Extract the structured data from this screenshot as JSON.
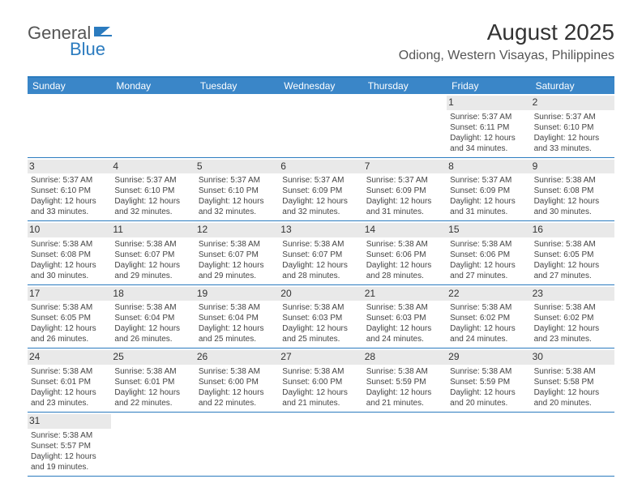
{
  "logo": {
    "word1": "General",
    "word2": "Blue"
  },
  "title": "August 2025",
  "location": "Odiong, Western Visayas, Philippines",
  "dayNames": [
    "Sunday",
    "Monday",
    "Tuesday",
    "Wednesday",
    "Thursday",
    "Friday",
    "Saturday"
  ],
  "colors": {
    "headerBar": "#3a86c8",
    "accent": "#2b7bbf",
    "numBg": "#e9e9e9",
    "text": "#444"
  },
  "weeks": [
    [
      null,
      null,
      null,
      null,
      null,
      {
        "n": "1",
        "sr": "5:37 AM",
        "ss": "6:11 PM",
        "dl": "12 hours and 34 minutes."
      },
      {
        "n": "2",
        "sr": "5:37 AM",
        "ss": "6:10 PM",
        "dl": "12 hours and 33 minutes."
      }
    ],
    [
      {
        "n": "3",
        "sr": "5:37 AM",
        "ss": "6:10 PM",
        "dl": "12 hours and 33 minutes."
      },
      {
        "n": "4",
        "sr": "5:37 AM",
        "ss": "6:10 PM",
        "dl": "12 hours and 32 minutes."
      },
      {
        "n": "5",
        "sr": "5:37 AM",
        "ss": "6:10 PM",
        "dl": "12 hours and 32 minutes."
      },
      {
        "n": "6",
        "sr": "5:37 AM",
        "ss": "6:09 PM",
        "dl": "12 hours and 32 minutes."
      },
      {
        "n": "7",
        "sr": "5:37 AM",
        "ss": "6:09 PM",
        "dl": "12 hours and 31 minutes."
      },
      {
        "n": "8",
        "sr": "5:37 AM",
        "ss": "6:09 PM",
        "dl": "12 hours and 31 minutes."
      },
      {
        "n": "9",
        "sr": "5:38 AM",
        "ss": "6:08 PM",
        "dl": "12 hours and 30 minutes."
      }
    ],
    [
      {
        "n": "10",
        "sr": "5:38 AM",
        "ss": "6:08 PM",
        "dl": "12 hours and 30 minutes."
      },
      {
        "n": "11",
        "sr": "5:38 AM",
        "ss": "6:07 PM",
        "dl": "12 hours and 29 minutes."
      },
      {
        "n": "12",
        "sr": "5:38 AM",
        "ss": "6:07 PM",
        "dl": "12 hours and 29 minutes."
      },
      {
        "n": "13",
        "sr": "5:38 AM",
        "ss": "6:07 PM",
        "dl": "12 hours and 28 minutes."
      },
      {
        "n": "14",
        "sr": "5:38 AM",
        "ss": "6:06 PM",
        "dl": "12 hours and 28 minutes."
      },
      {
        "n": "15",
        "sr": "5:38 AM",
        "ss": "6:06 PM",
        "dl": "12 hours and 27 minutes."
      },
      {
        "n": "16",
        "sr": "5:38 AM",
        "ss": "6:05 PM",
        "dl": "12 hours and 27 minutes."
      }
    ],
    [
      {
        "n": "17",
        "sr": "5:38 AM",
        "ss": "6:05 PM",
        "dl": "12 hours and 26 minutes."
      },
      {
        "n": "18",
        "sr": "5:38 AM",
        "ss": "6:04 PM",
        "dl": "12 hours and 26 minutes."
      },
      {
        "n": "19",
        "sr": "5:38 AM",
        "ss": "6:04 PM",
        "dl": "12 hours and 25 minutes."
      },
      {
        "n": "20",
        "sr": "5:38 AM",
        "ss": "6:03 PM",
        "dl": "12 hours and 25 minutes."
      },
      {
        "n": "21",
        "sr": "5:38 AM",
        "ss": "6:03 PM",
        "dl": "12 hours and 24 minutes."
      },
      {
        "n": "22",
        "sr": "5:38 AM",
        "ss": "6:02 PM",
        "dl": "12 hours and 24 minutes."
      },
      {
        "n": "23",
        "sr": "5:38 AM",
        "ss": "6:02 PM",
        "dl": "12 hours and 23 minutes."
      }
    ],
    [
      {
        "n": "24",
        "sr": "5:38 AM",
        "ss": "6:01 PM",
        "dl": "12 hours and 23 minutes."
      },
      {
        "n": "25",
        "sr": "5:38 AM",
        "ss": "6:01 PM",
        "dl": "12 hours and 22 minutes."
      },
      {
        "n": "26",
        "sr": "5:38 AM",
        "ss": "6:00 PM",
        "dl": "12 hours and 22 minutes."
      },
      {
        "n": "27",
        "sr": "5:38 AM",
        "ss": "6:00 PM",
        "dl": "12 hours and 21 minutes."
      },
      {
        "n": "28",
        "sr": "5:38 AM",
        "ss": "5:59 PM",
        "dl": "12 hours and 21 minutes."
      },
      {
        "n": "29",
        "sr": "5:38 AM",
        "ss": "5:59 PM",
        "dl": "12 hours and 20 minutes."
      },
      {
        "n": "30",
        "sr": "5:38 AM",
        "ss": "5:58 PM",
        "dl": "12 hours and 20 minutes."
      }
    ],
    [
      {
        "n": "31",
        "sr": "5:38 AM",
        "ss": "5:57 PM",
        "dl": "12 hours and 19 minutes."
      },
      null,
      null,
      null,
      null,
      null,
      null
    ]
  ],
  "labels": {
    "sunrise": "Sunrise: ",
    "sunset": "Sunset: ",
    "daylight": "Daylight: "
  }
}
